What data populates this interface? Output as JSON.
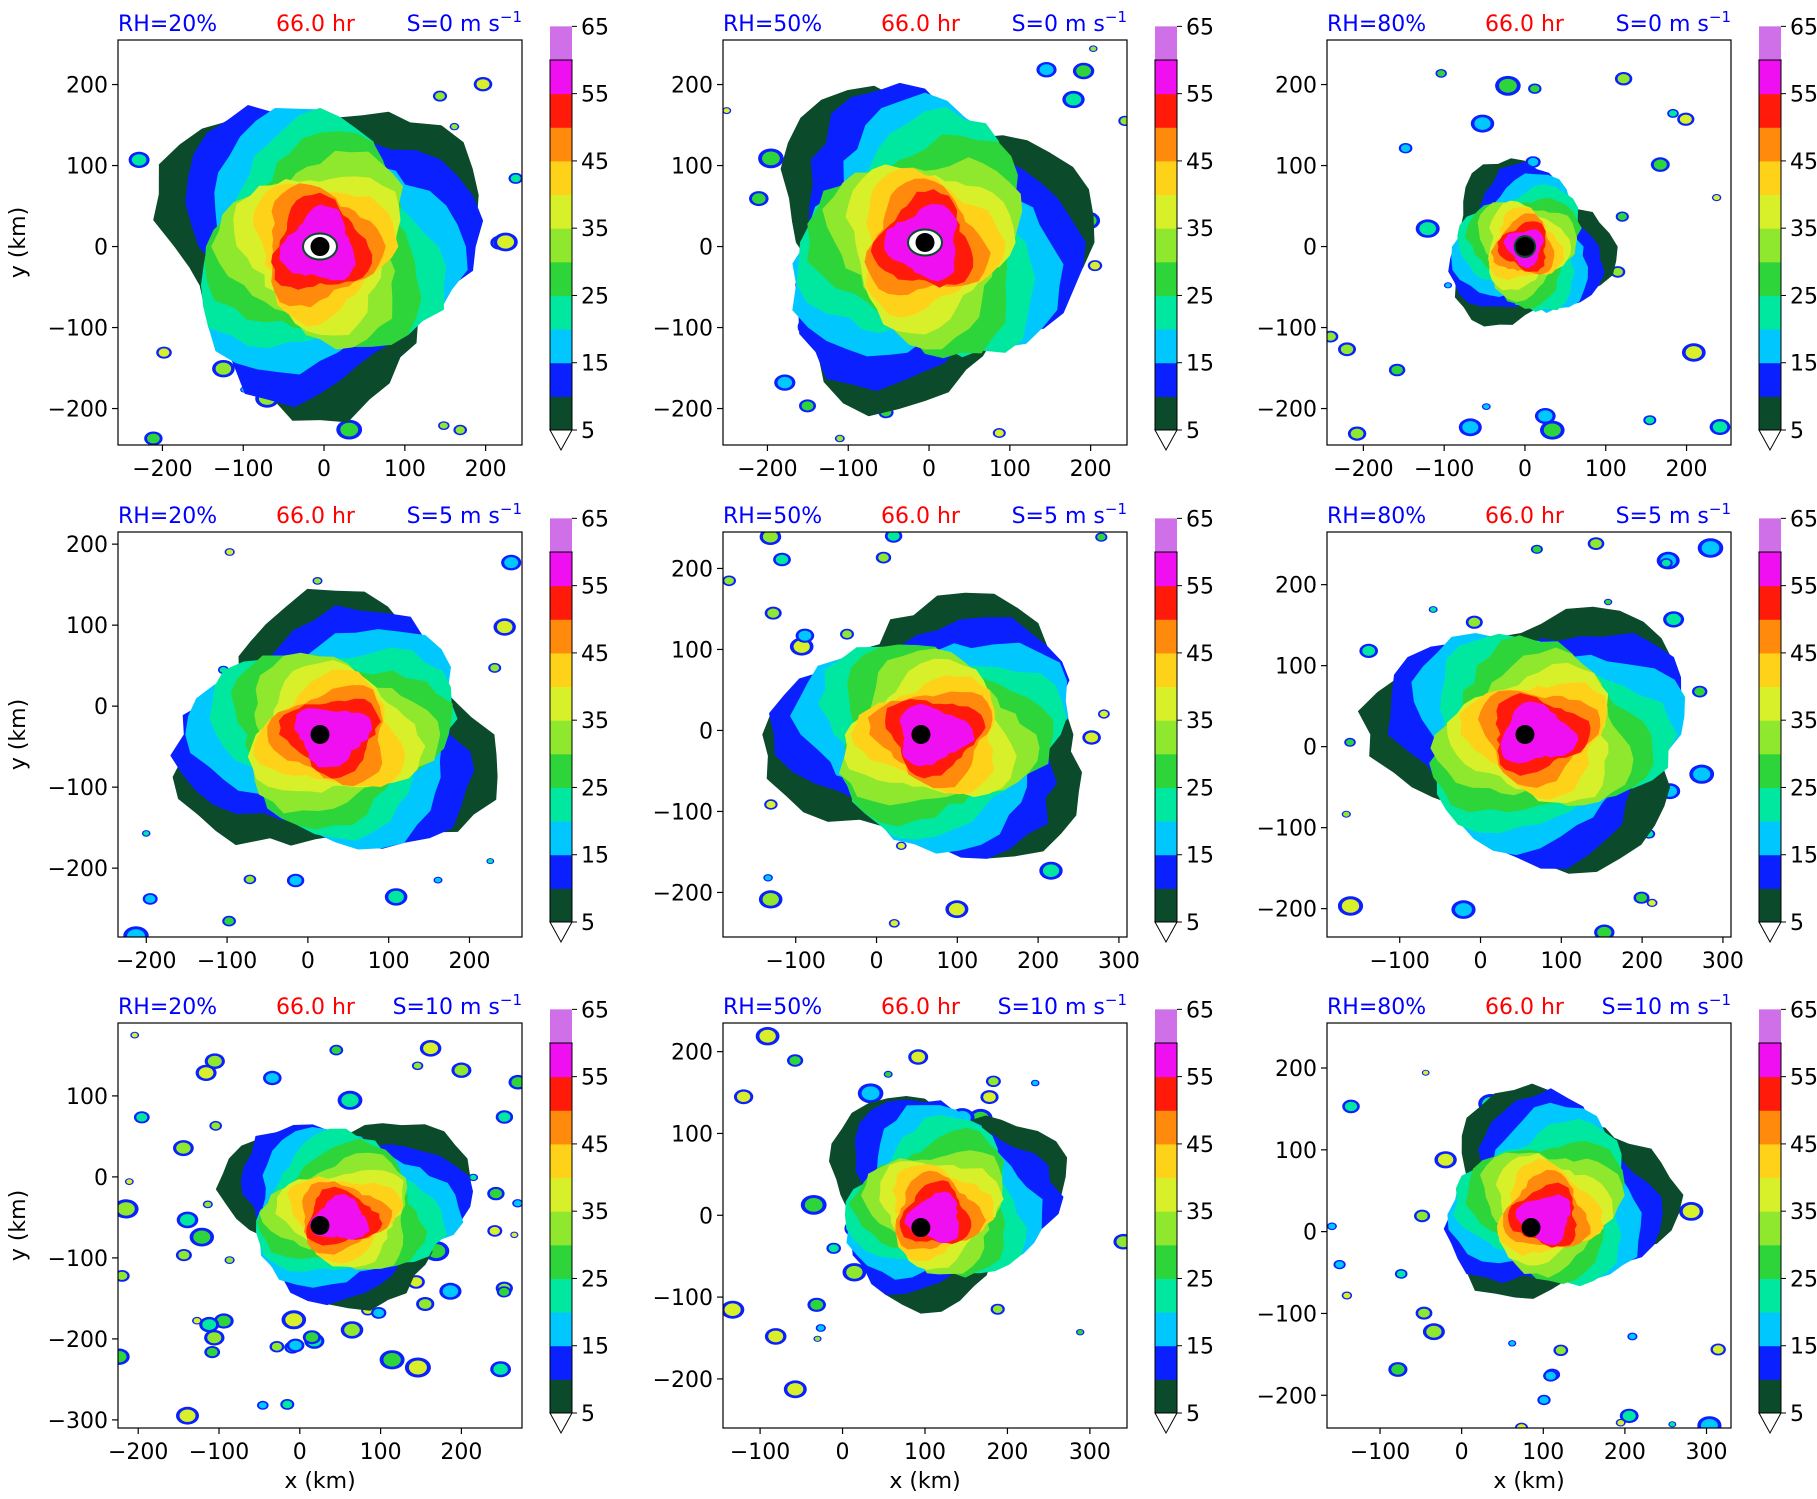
{
  "figure": {
    "time_label": "66.0 hr",
    "xlabel": "x (km)",
    "ylabel": "y (km)"
  },
  "colorbar": {
    "levels": [
      5,
      10,
      15,
      20,
      25,
      30,
      35,
      40,
      45,
      50,
      55,
      60,
      65,
      70
    ],
    "tick_labels": [
      "5",
      "15",
      "25",
      "35",
      "45",
      "55",
      "65"
    ],
    "colors": [
      "#0b4a2a",
      "#0a20ff",
      "#00c8ff",
      "#00e8a0",
      "#2ed53a",
      "#8fe72e",
      "#d8f02a",
      "#ffd21a",
      "#ff8a0c",
      "#ff1a0a",
      "#f00ff0",
      "#d070e8",
      "#f7c8f5"
    ],
    "extend": "both"
  },
  "colors": {
    "rh_label": "#0000ff",
    "time_label": "#ff0000",
    "shear_label": "#0000ff"
  },
  "chart_data": [
    {
      "type": "heatmap",
      "rh": "RH=20%",
      "shear": "S=0 m s",
      "shear_exp": "−1",
      "time": "66.0 hr",
      "xlim": [
        -255,
        245
      ],
      "ylim": [
        -245,
        255
      ],
      "xticks": [
        -200,
        -100,
        0,
        100,
        200
      ],
      "yticks": [
        -200,
        -100,
        0,
        100,
        200
      ],
      "center": [
        -5,
        0
      ],
      "marker": "eye",
      "intensity": "strong-ring"
    },
    {
      "type": "heatmap",
      "rh": "RH=50%",
      "shear": "S=0 m s",
      "shear_exp": "−1",
      "time": "66.0 hr",
      "xlim": [
        -255,
        245
      ],
      "ylim": [
        -245,
        255
      ],
      "xticks": [
        -200,
        -100,
        0,
        100,
        200
      ],
      "yticks": [
        -200,
        -100,
        0,
        100,
        200
      ],
      "center": [
        -5,
        5
      ],
      "marker": "eye",
      "intensity": "strong-ring"
    },
    {
      "type": "heatmap",
      "rh": "RH=80%",
      "shear": "S=0 m s",
      "shear_exp": "−1",
      "time": "66.0 hr",
      "xlim": [
        -245,
        255
      ],
      "ylim": [
        -245,
        255
      ],
      "xticks": [
        -200,
        -100,
        0,
        100,
        200
      ],
      "yticks": [
        -200,
        -100,
        0,
        100,
        200
      ],
      "center": [
        0,
        0
      ],
      "marker": "eye",
      "intensity": "compact"
    },
    {
      "type": "heatmap",
      "rh": "RH=20%",
      "shear": "S=5 m s",
      "shear_exp": "−1",
      "time": "66.0 hr",
      "xlim": [
        -235,
        265
      ],
      "ylim": [
        -285,
        215
      ],
      "xticks": [
        -200,
        -100,
        0,
        100,
        200
      ],
      "yticks": [
        -200,
        -100,
        0,
        100,
        200
      ],
      "center": [
        15,
        -35
      ],
      "marker": "dot",
      "intensity": "sheared"
    },
    {
      "type": "heatmap",
      "rh": "RH=50%",
      "shear": "S=5 m s",
      "shear_exp": "−1",
      "time": "66.0 hr",
      "xlim": [
        -190,
        310
      ],
      "ylim": [
        -255,
        245
      ],
      "xticks": [
        -100,
        0,
        100,
        200,
        300
      ],
      "yticks": [
        -200,
        -100,
        0,
        100,
        200
      ],
      "center": [
        55,
        -5
      ],
      "marker": "dot",
      "intensity": "sheared"
    },
    {
      "type": "heatmap",
      "rh": "RH=80%",
      "shear": "S=5 m s",
      "shear_exp": "−1",
      "time": "66.0 hr",
      "xlim": [
        -190,
        310
      ],
      "ylim": [
        -235,
        265
      ],
      "xticks": [
        -100,
        0,
        100,
        200,
        300
      ],
      "yticks": [
        -200,
        -100,
        0,
        100,
        200
      ],
      "center": [
        55,
        15
      ],
      "marker": "dot",
      "intensity": "sheared"
    },
    {
      "type": "heatmap",
      "rh": "RH=20%",
      "shear": "S=10 m s",
      "shear_exp": "−1",
      "time": "66.0 hr",
      "xlim": [
        -225,
        275
      ],
      "ylim": [
        -310,
        190
      ],
      "xticks": [
        -200,
        -100,
        0,
        100,
        200
      ],
      "yticks": [
        -300,
        -200,
        -100,
        0,
        100
      ],
      "center": [
        25,
        -60
      ],
      "marker": "dot",
      "intensity": "disorganized"
    },
    {
      "type": "heatmap",
      "rh": "RH=50%",
      "shear": "S=10 m s",
      "shear_exp": "−1",
      "time": "66.0 hr",
      "xlim": [
        -145,
        345
      ],
      "ylim": [
        -260,
        235
      ],
      "xticks": [
        -100,
        0,
        100,
        200,
        300
      ],
      "yticks": [
        -200,
        -100,
        0,
        100,
        200
      ],
      "center": [
        95,
        -15
      ],
      "marker": "dot",
      "intensity": "downshear"
    },
    {
      "type": "heatmap",
      "rh": "RH=80%",
      "shear": "S=10 m s",
      "shear_exp": "−1",
      "time": "66.0 hr",
      "xlim": [
        -165,
        330
      ],
      "ylim": [
        -240,
        255
      ],
      "xticks": [
        -100,
        0,
        100,
        200,
        300
      ],
      "yticks": [
        -200,
        -100,
        0,
        100,
        200
      ],
      "center": [
        85,
        5
      ],
      "marker": "dot",
      "intensity": "downshear"
    }
  ]
}
